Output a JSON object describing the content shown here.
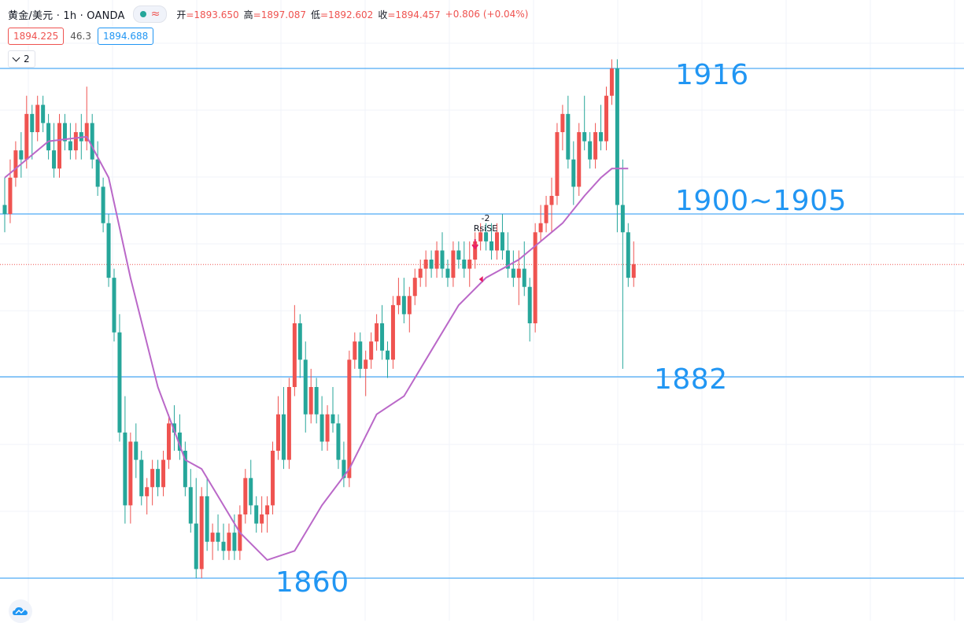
{
  "header": {
    "symbol": "黄金/美元 · 1h · OANDA",
    "ohlc": [
      {
        "label": "开",
        "value": "=1893.650"
      },
      {
        "label": "高",
        "value": "=1897.087"
      },
      {
        "label": "低",
        "value": "=1892.602"
      },
      {
        "label": "收",
        "value": "=1894.457"
      }
    ],
    "change": "+0.806 (+0.04%)"
  },
  "quote": {
    "sell": "1894.225",
    "spread": "46.3",
    "buy": "1894.688"
  },
  "collapse_count": "2",
  "levels": [
    {
      "value": 1916,
      "text": "1916"
    },
    {
      "value": 1902.5,
      "text": "1900~1905"
    },
    {
      "value": 1882,
      "text": "1882"
    },
    {
      "value": 1860,
      "text": "1860"
    }
  ],
  "signal": {
    "line1": "-2",
    "line2": "RsiSE"
  },
  "icons": {
    "status": "dot-icon",
    "wave": "wave-icon",
    "collapse": "chevron-down-icon",
    "logo": "cloud-logo-icon"
  },
  "colors": {
    "up": "#ef5350",
    "down": "#26a69a",
    "ma": "#ba68c8",
    "level": "#2196f3",
    "price_line": "#ef5350"
  },
  "chart_data": {
    "type": "candlestick",
    "ylim": [
      1859.5,
      1917.5
    ],
    "current_price": 1894.457,
    "ohlc": [
      [
        1901,
        1904,
        1898,
        1900
      ],
      [
        1900,
        1906,
        1899,
        1904
      ],
      [
        1904,
        1908,
        1903,
        1907
      ],
      [
        1907,
        1909,
        1904,
        1906
      ],
      [
        1906,
        1913,
        1905,
        1911
      ],
      [
        1911,
        1912,
        1906,
        1909
      ],
      [
        1909,
        1913,
        1908,
        1912
      ],
      [
        1912,
        1913,
        1909,
        1910
      ],
      [
        1910,
        1911,
        1906,
        1907
      ],
      [
        1907,
        1910,
        1904,
        1905
      ],
      [
        1905,
        1911,
        1904,
        1910
      ],
      [
        1910,
        1911,
        1907,
        1908
      ],
      [
        1908,
        1910,
        1906,
        1907
      ],
      [
        1907,
        1910,
        1906,
        1909
      ],
      [
        1909,
        1911,
        1906,
        1908
      ],
      [
        1908,
        1914,
        1907,
        1910
      ],
      [
        1910,
        1911,
        1905,
        1906
      ],
      [
        1906,
        1908,
        1902,
        1903
      ],
      [
        1903,
        1904,
        1898,
        1899
      ],
      [
        1899,
        1900,
        1892,
        1893
      ],
      [
        1893,
        1894,
        1886,
        1887
      ],
      [
        1887,
        1889,
        1875,
        1876
      ],
      [
        1876,
        1880,
        1866,
        1868
      ],
      [
        1868,
        1876,
        1866,
        1875
      ],
      [
        1875,
        1877,
        1871,
        1873
      ],
      [
        1873,
        1874,
        1868,
        1869
      ],
      [
        1869,
        1871,
        1867,
        1870
      ],
      [
        1870,
        1873,
        1868,
        1872
      ],
      [
        1872,
        1873,
        1869,
        1870
      ],
      [
        1870,
        1874,
        1869,
        1873
      ],
      [
        1873,
        1878,
        1872,
        1877
      ],
      [
        1877,
        1879,
        1874,
        1876
      ],
      [
        1876,
        1878,
        1873,
        1874
      ],
      [
        1874,
        1875,
        1869,
        1870
      ],
      [
        1870,
        1872,
        1865,
        1866
      ],
      [
        1866,
        1871,
        1860,
        1861
      ],
      [
        1861,
        1870,
        1860,
        1869
      ],
      [
        1869,
        1871,
        1863,
        1864
      ],
      [
        1864,
        1866,
        1862,
        1865
      ],
      [
        1865,
        1867,
        1863,
        1864
      ],
      [
        1864,
        1866,
        1862,
        1863
      ],
      [
        1863,
        1866,
        1862,
        1865
      ],
      [
        1865,
        1867,
        1862,
        1863
      ],
      [
        1863,
        1868,
        1862,
        1867
      ],
      [
        1867,
        1872,
        1866,
        1871
      ],
      [
        1871,
        1873,
        1867,
        1868
      ],
      [
        1868,
        1869,
        1865,
        1866
      ],
      [
        1866,
        1869,
        1865,
        1867
      ],
      [
        1867,
        1869,
        1865,
        1868
      ],
      [
        1868,
        1875,
        1867,
        1874
      ],
      [
        1874,
        1880,
        1873,
        1878
      ],
      [
        1878,
        1881,
        1872,
        1873
      ],
      [
        1873,
        1882,
        1872,
        1881
      ],
      [
        1881,
        1890,
        1880,
        1888
      ],
      [
        1888,
        1889,
        1882,
        1884
      ],
      [
        1884,
        1886,
        1876,
        1878
      ],
      [
        1878,
        1883,
        1877,
        1881
      ],
      [
        1881,
        1882,
        1877,
        1878
      ],
      [
        1878,
        1880,
        1874,
        1875
      ],
      [
        1875,
        1879,
        1874,
        1878
      ],
      [
        1878,
        1881,
        1876,
        1877
      ],
      [
        1877,
        1878,
        1872,
        1873
      ],
      [
        1873,
        1875,
        1870,
        1871
      ],
      [
        1871,
        1885,
        1870,
        1884
      ],
      [
        1884,
        1887,
        1883,
        1886
      ],
      [
        1886,
        1887,
        1882,
        1883
      ],
      [
        1883,
        1885,
        1880,
        1884
      ],
      [
        1884,
        1887,
        1883,
        1886
      ],
      [
        1886,
        1889,
        1885,
        1888
      ],
      [
        1888,
        1890,
        1884,
        1885
      ],
      [
        1885,
        1886,
        1882,
        1884
      ],
      [
        1884,
        1891,
        1883,
        1890
      ],
      [
        1890,
        1893,
        1889,
        1891
      ],
      [
        1891,
        1893,
        1888,
        1889
      ],
      [
        1889,
        1892,
        1887,
        1891
      ],
      [
        1891,
        1894,
        1890,
        1893
      ],
      [
        1893,
        1895,
        1892,
        1894
      ],
      [
        1894,
        1896,
        1892,
        1895
      ],
      [
        1895,
        1896,
        1893,
        1894
      ],
      [
        1894,
        1897,
        1893,
        1896
      ],
      [
        1896,
        1898,
        1893,
        1894
      ],
      [
        1894,
        1895,
        1892,
        1893
      ],
      [
        1893,
        1897,
        1892,
        1896
      ],
      [
        1896,
        1897,
        1894,
        1895
      ],
      [
        1895,
        1897,
        1893,
        1894
      ],
      [
        1894,
        1897,
        1892,
        1895
      ],
      [
        1895,
        1898,
        1894,
        1897
      ],
      [
        1897,
        1899,
        1896,
        1898
      ],
      [
        1898,
        1899,
        1896,
        1897
      ],
      [
        1897,
        1899,
        1895,
        1896
      ],
      [
        1896,
        1899,
        1895,
        1898
      ],
      [
        1898,
        1900,
        1895,
        1896
      ],
      [
        1896,
        1898,
        1893,
        1894
      ],
      [
        1894,
        1896,
        1892,
        1893
      ],
      [
        1893,
        1896,
        1890,
        1894
      ],
      [
        1894,
        1897,
        1891,
        1892
      ],
      [
        1892,
        1893,
        1886,
        1888
      ],
      [
        1888,
        1899,
        1887,
        1898
      ],
      [
        1898,
        1901,
        1897,
        1899
      ],
      [
        1899,
        1902,
        1898,
        1901
      ],
      [
        1901,
        1904,
        1898,
        1902
      ],
      [
        1902,
        1910,
        1901,
        1909
      ],
      [
        1909,
        1912,
        1907,
        1911
      ],
      [
        1911,
        1913,
        1905,
        1906
      ],
      [
        1906,
        1908,
        1901,
        1903
      ],
      [
        1903,
        1910,
        1902,
        1909
      ],
      [
        1909,
        1913,
        1907,
        1908
      ],
      [
        1908,
        1909,
        1905,
        1906
      ],
      [
        1906,
        1910,
        1905,
        1909
      ],
      [
        1909,
        1912,
        1907,
        1908
      ],
      [
        1908,
        1914,
        1907,
        1913
      ],
      [
        1913,
        1917,
        1912,
        1916
      ],
      [
        1916,
        1917,
        1898,
        1901
      ],
      [
        1901,
        1906,
        1883,
        1898
      ],
      [
        1898,
        1899,
        1892,
        1893
      ],
      [
        1893,
        1897,
        1892,
        1894.5
      ]
    ],
    "ma": [
      [
        0,
        1904
      ],
      [
        8,
        1908
      ],
      [
        15,
        1908.5
      ],
      [
        19,
        1904
      ],
      [
        23,
        1893
      ],
      [
        28,
        1881
      ],
      [
        33,
        1873
      ],
      [
        36,
        1872
      ],
      [
        43,
        1865
      ],
      [
        48,
        1862
      ],
      [
        53,
        1863
      ],
      [
        58,
        1868
      ],
      [
        63,
        1872
      ],
      [
        68,
        1878
      ],
      [
        73,
        1880
      ],
      [
        78,
        1885
      ],
      [
        83,
        1890
      ],
      [
        88,
        1893
      ],
      [
        91,
        1894
      ],
      [
        94,
        1895
      ],
      [
        98,
        1897
      ],
      [
        102,
        1899
      ],
      [
        106,
        1902
      ],
      [
        109,
        1904
      ],
      [
        111,
        1905
      ],
      [
        114,
        1905
      ]
    ],
    "signal_index": 86
  }
}
